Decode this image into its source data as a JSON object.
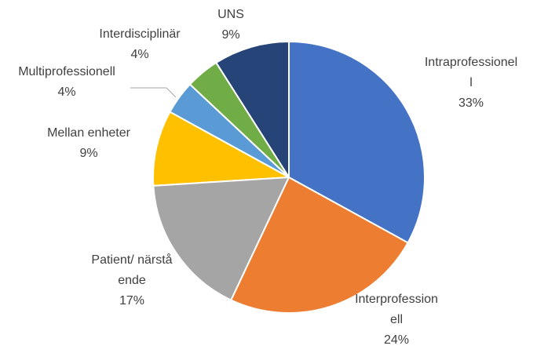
{
  "chart_data": {
    "type": "pie",
    "categories": [
      "Intraprofessionell",
      "Interprofessionell",
      "Patient/ närstående",
      "Mellan enheter",
      "Multiprofessionell",
      "Interdisciplinär",
      "UNS"
    ],
    "values": [
      33,
      24,
      17,
      9,
      4,
      4,
      9
    ],
    "value_labels": [
      "33%",
      "24%",
      "17%",
      "9%",
      "4%",
      "4%",
      "9%"
    ],
    "colors": [
      "#4472c4",
      "#ed7d31",
      "#a5a5a5",
      "#ffc000",
      "#5b9bd5",
      "#70ad47",
      "#264478"
    ]
  }
}
